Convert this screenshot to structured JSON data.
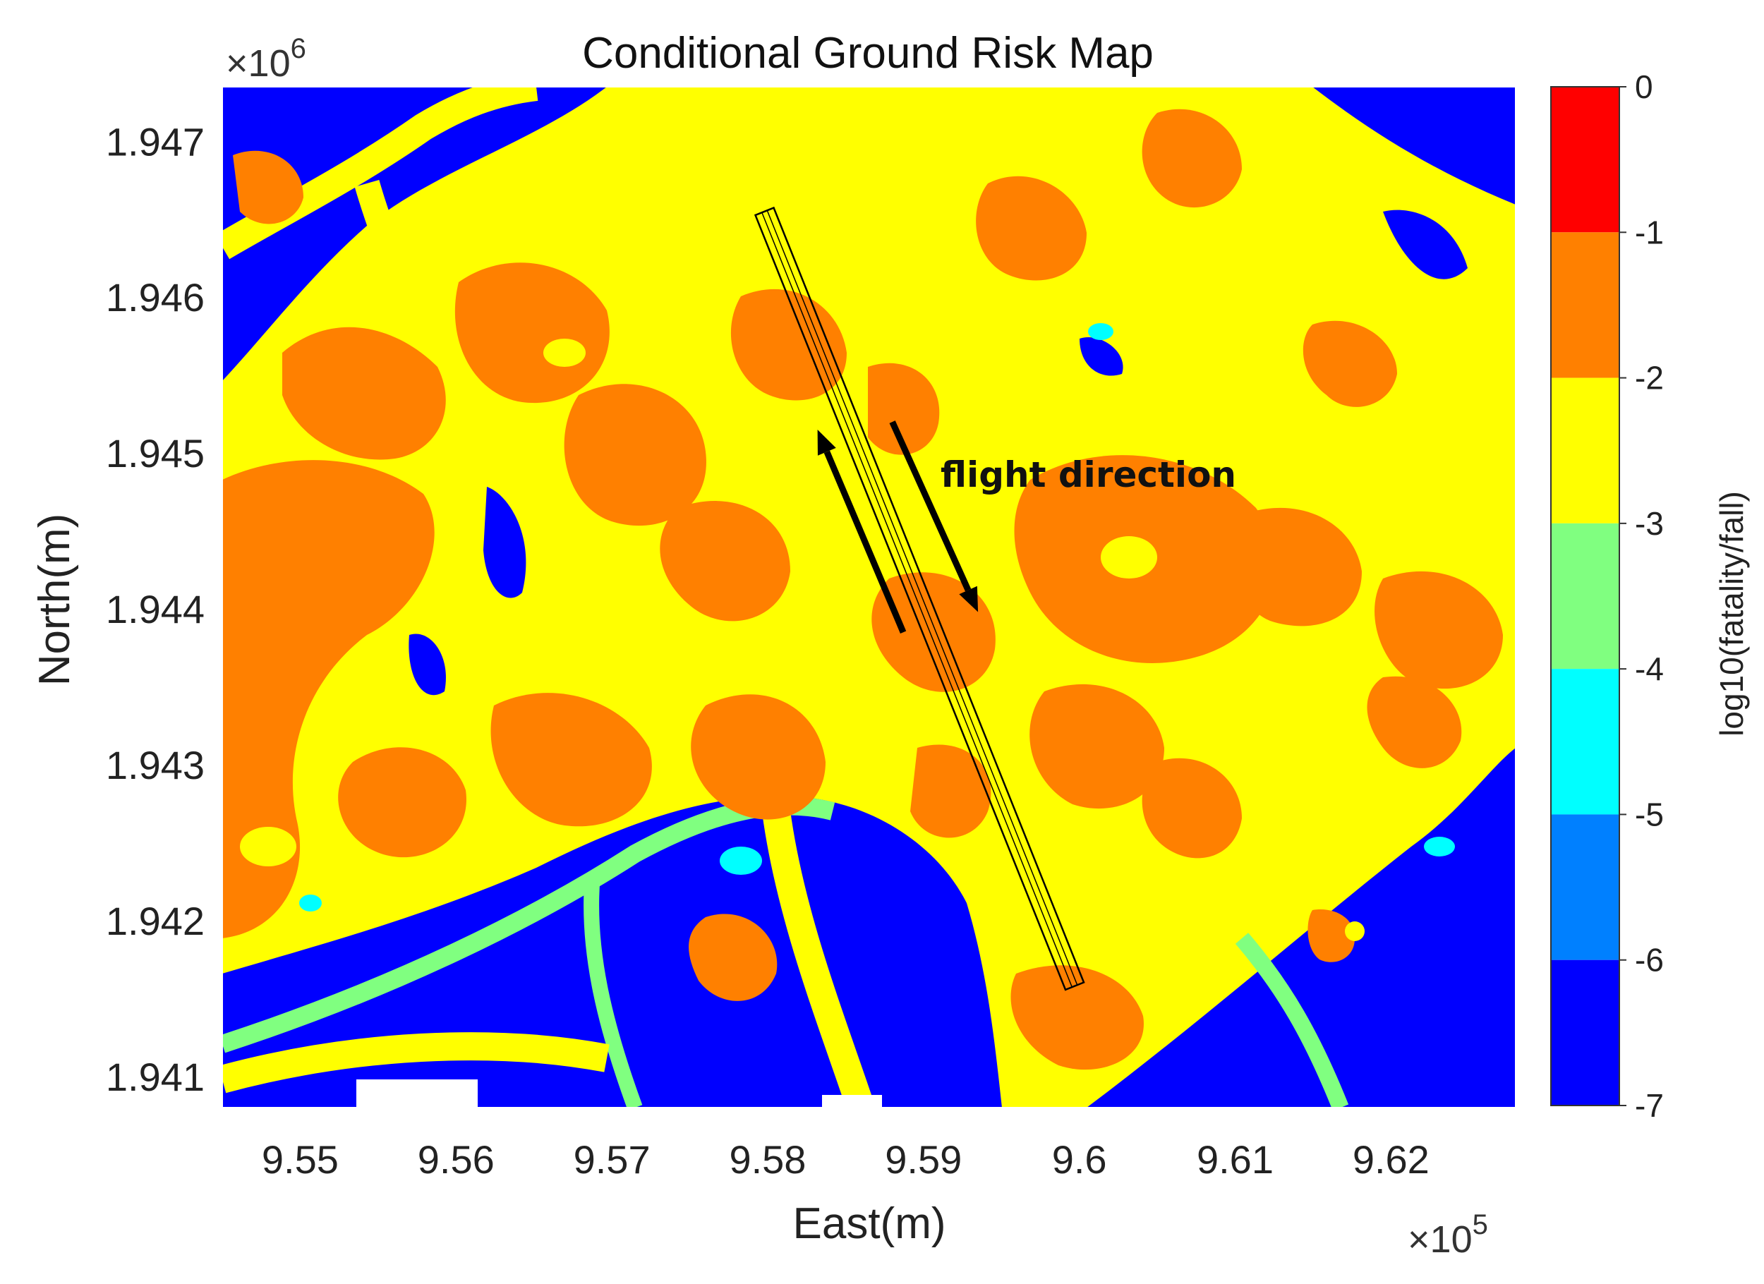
{
  "chart_data": {
    "type": "heatmap",
    "title": "Conditional Ground Risk Map",
    "xlabel": "East(m)",
    "ylabel": "North(m)",
    "x_multiplier": "×10",
    "x_multiplier_exp": "5",
    "y_multiplier": "×10",
    "y_multiplier_exp": "6",
    "xlim": [
      9.545,
      9.628
    ],
    "ylim": [
      1.9408,
      1.94735
    ],
    "x_ticks": [
      9.55,
      9.56,
      9.57,
      9.58,
      9.59,
      9.6,
      9.61,
      9.62
    ],
    "x_tick_labels": [
      "9.55",
      "9.56",
      "9.57",
      "9.58",
      "9.59",
      "9.6",
      "9.61",
      "9.62"
    ],
    "y_ticks": [
      1.941,
      1.942,
      1.943,
      1.944,
      1.945,
      1.946,
      1.947
    ],
    "y_tick_labels": [
      "1.941",
      "1.942",
      "1.943",
      "1.944",
      "1.945",
      "1.946",
      "1.947"
    ],
    "colorbar": {
      "label": "log10(fatality/fall)",
      "range": [
        -7,
        0
      ],
      "tick_values": [
        0,
        -1,
        -2,
        -3,
        -4,
        -5,
        -6,
        -7
      ],
      "tick_labels": [
        "0",
        "-1",
        "-2",
        "-3",
        "-4",
        "-5",
        "-6",
        "-7"
      ],
      "bands": [
        {
          "from": -1,
          "to": 0,
          "color": "#ff0000"
        },
        {
          "from": -2,
          "to": -1,
          "color": "#ff8000"
        },
        {
          "from": -3,
          "to": -2,
          "color": "#ffff00"
        },
        {
          "from": -4,
          "to": -3,
          "color": "#80ff80"
        },
        {
          "from": -5,
          "to": -4,
          "color": "#00ffff"
        },
        {
          "from": -6,
          "to": -5,
          "color": "#0080ff"
        },
        {
          "from": -7,
          "to": -6,
          "color": "#0000ff"
        }
      ]
    },
    "flight_corridor": {
      "start": [
        9.5798,
        1.94655
      ],
      "end": [
        9.5997,
        1.94158
      ],
      "color": "#000000"
    },
    "annotation": {
      "text": "flight direction",
      "arrows": [
        {
          "from": [
            9.5887,
            1.94385
          ],
          "to": [
            9.5832,
            1.94515
          ]
        },
        {
          "from": [
            9.588,
            1.9452
          ],
          "to": [
            9.5935,
            1.94398
          ]
        }
      ]
    }
  },
  "colors": {
    "water": "#0000ff",
    "low": "#80ff80",
    "very_low": "#00ffff",
    "medium": "#ffff00",
    "high": "#ff8000"
  }
}
